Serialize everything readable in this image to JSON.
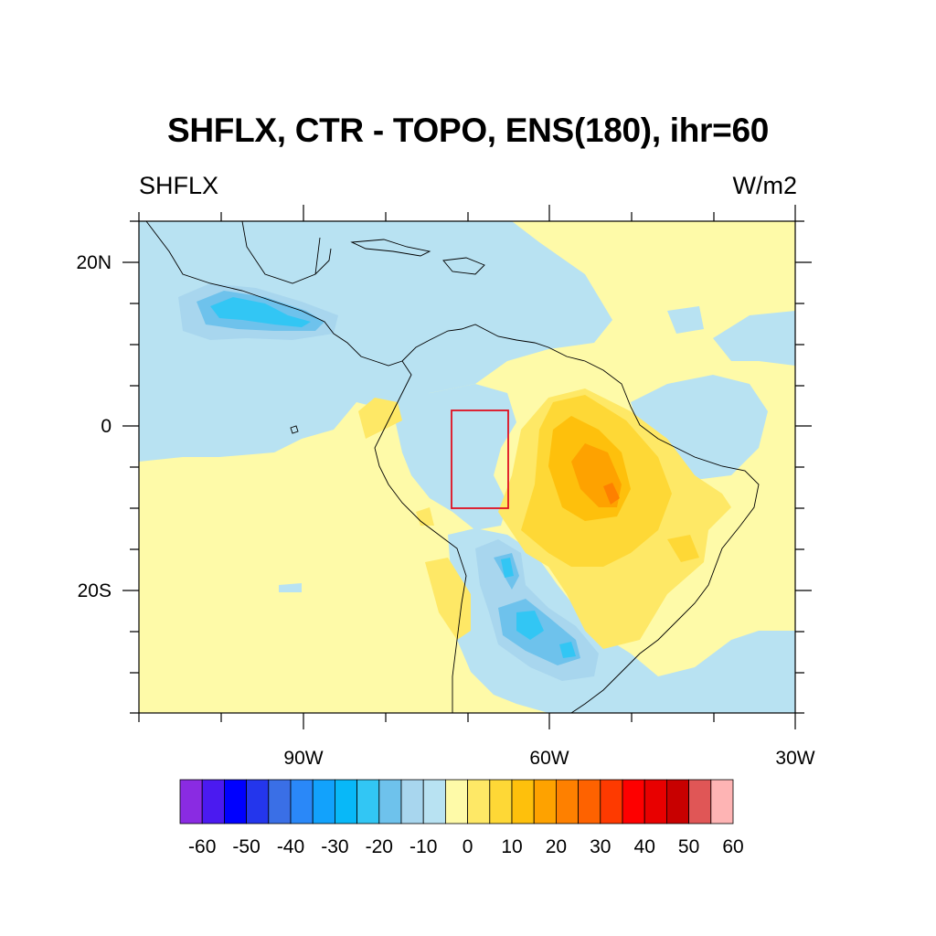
{
  "title": "SHFLX, CTR - TOPO, ENS(180), ihr=60",
  "left_label": "SHFLX",
  "right_label": "W/m2",
  "map": {
    "lon_range": [
      -110,
      -30
    ],
    "lat_range": [
      -35,
      25
    ],
    "lon_ticks": [
      {
        "value": -90,
        "label": "90W"
      },
      {
        "value": -60,
        "label": "60W"
      },
      {
        "value": -30,
        "label": "30W"
      }
    ],
    "lat_ticks": [
      {
        "value": 20,
        "label": "20N"
      },
      {
        "value": 0,
        "label": "0"
      },
      {
        "value": -20,
        "label": "20S"
      }
    ],
    "highlight_box": {
      "lon": [
        -73,
        -66
      ],
      "lat": [
        -10,
        2
      ],
      "color": "#e01020"
    }
  },
  "colorbar": {
    "labels": [
      "-60",
      "-50",
      "-40",
      "-30",
      "-20",
      "-10",
      "0",
      "10",
      "20",
      "30",
      "40",
      "50",
      "60"
    ],
    "colors": [
      "#8a2be2",
      "#4b1af0",
      "#0000ff",
      "#2436ec",
      "#3a6fe6",
      "#2a88f8",
      "#12a2fc",
      "#08b8f8",
      "#32c6f4",
      "#6ec2ec",
      "#a8d6ee",
      "#b8e2f2",
      "#fefaa8",
      "#fee866",
      "#fed836",
      "#fec00c",
      "#fea200",
      "#fe8000",
      "#fe6200",
      "#fe3a00",
      "#fe0000",
      "#e80000",
      "#c80000",
      "#e05656",
      "#feb4b4"
    ]
  }
}
